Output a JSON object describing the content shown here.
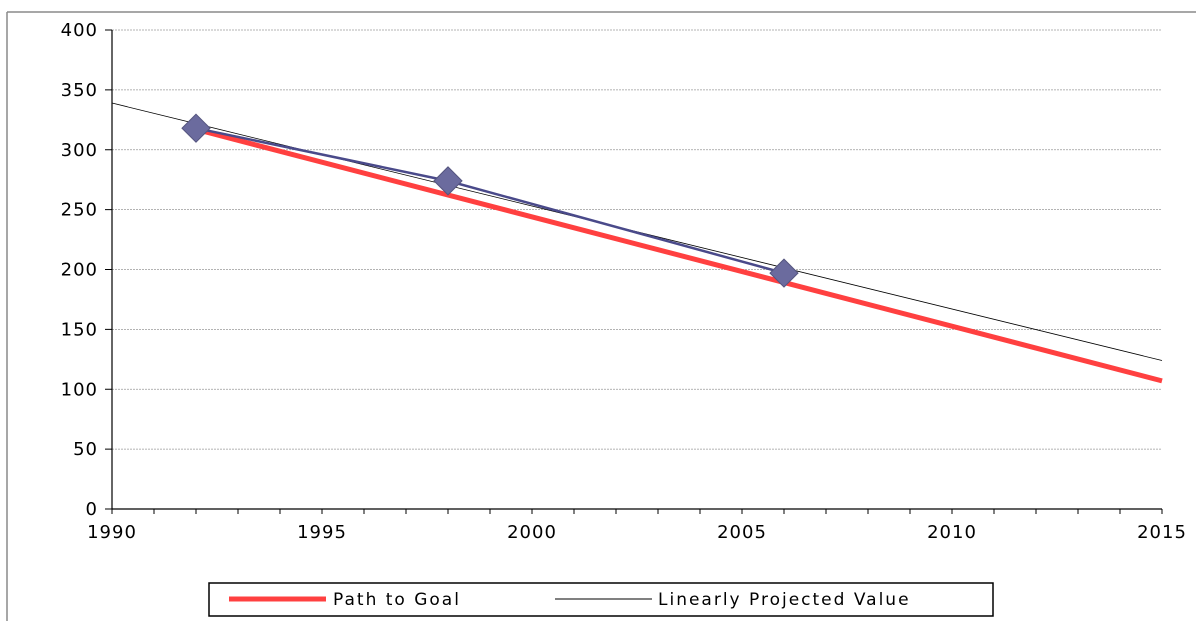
{
  "chart_data": {
    "type": "line",
    "xlim": [
      1990,
      2015
    ],
    "ylim": [
      0,
      400
    ],
    "x_ticks": [
      "1990",
      "1995",
      "2000",
      "2005",
      "2010",
      "2015"
    ],
    "y_ticks": [
      "0",
      "50",
      "100",
      "150",
      "200",
      "250",
      "300",
      "350",
      "400"
    ],
    "grid": "horizontal",
    "legend_position": "bottom",
    "series": [
      {
        "name": "Path to Goal",
        "color": "#ff4040",
        "style": "thick-line",
        "x": [
          1992,
          2015
        ],
        "y": [
          317,
          107
        ]
      },
      {
        "name": "Linearly Projected Value",
        "color": "#000000",
        "style": "thin-line",
        "x": [
          1990,
          2015
        ],
        "y": [
          339,
          124
        ]
      },
      {
        "color": "#6b6b9e",
        "style": "line-with-diamond-markers",
        "x": [
          1992,
          1998,
          2006
        ],
        "y": [
          318,
          274,
          197
        ]
      }
    ]
  }
}
